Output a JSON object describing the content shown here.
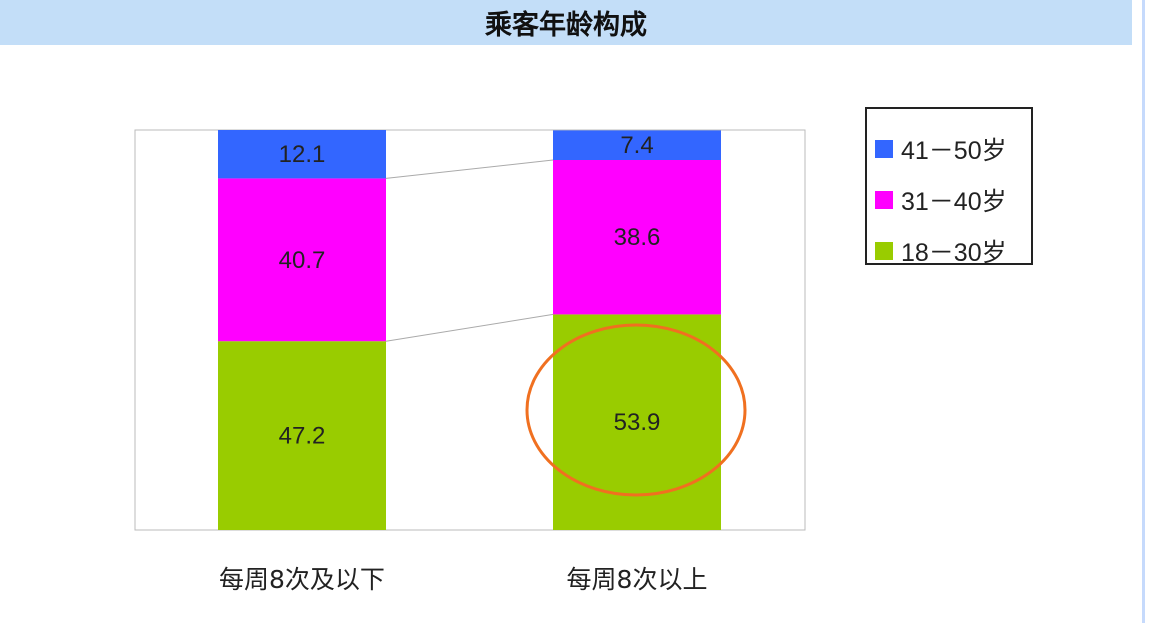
{
  "chart_data": {
    "type": "bar",
    "stacked": true,
    "title": "乘客年龄构成",
    "categories": [
      "每周8次及以下",
      "每周8次以上"
    ],
    "series": [
      {
        "name": "18－30岁",
        "color": "#99cc00",
        "values": [
          47.2,
          53.9
        ]
      },
      {
        "name": "31－40岁",
        "color": "#ff00ff",
        "values": [
          40.7,
          38.6
        ]
      },
      {
        "name": "41－50岁",
        "color": "#3366ff",
        "values": [
          12.1,
          7.4
        ]
      }
    ],
    "ylim": [
      0,
      100
    ],
    "legend_placement": "right",
    "series_lines": true,
    "annotation": {
      "type": "ellipse",
      "color": "#f07020",
      "target": "每周8次以上 18－30岁 53.9"
    }
  }
}
